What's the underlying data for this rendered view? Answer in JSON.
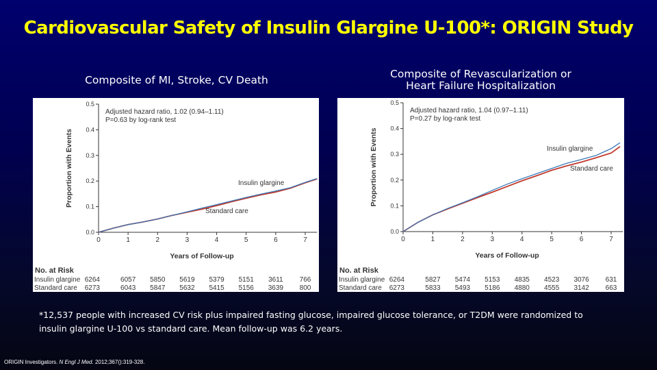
{
  "slide": {
    "title": "Cardiovascular Safety of Insulin Glargine U-100*: ORIGIN Study",
    "footnote_line1": "*12,537 people with increased CV risk plus impaired fasting glucose, impaired glucose tolerance, or T2DM were randomized to",
    "footnote_line2": "insulin glargine U-100 vs standard care. Mean follow-up was 6.2 years.",
    "citation_authors": "ORIGIN Investigators. ",
    "citation_journal": "N Engl J Med",
    "citation_rest": ". 2012;367():319-328."
  },
  "colors": {
    "title": "#ffff00",
    "glargine": "#3a78b8",
    "standard": "#c0392b"
  },
  "chart_data": [
    {
      "type": "line",
      "title": "Composite of MI, Stroke, CV Death",
      "xlabel": "Years of Follow-up",
      "ylabel": "Proportion with Events",
      "xlim": [
        0,
        7.4
      ],
      "ylim": [
        0,
        0.5
      ],
      "xticks": [
        "0",
        "1",
        "2",
        "3",
        "4",
        "5",
        "6",
        "7"
      ],
      "yticks": [
        "0.0",
        "0.1",
        "0.2",
        "0.3",
        "0.4",
        "0.5"
      ],
      "annotation1": "Adjusted hazard ratio, 1.02 (0.94–1.11)",
      "annotation2": "P=0.63 by log-rank test",
      "series": [
        {
          "name": "Insulin glargine",
          "x": [
            0,
            0.5,
            1,
            1.5,
            2,
            2.5,
            3,
            3.5,
            4,
            4.5,
            5,
            5.5,
            6,
            6.5,
            7,
            7.4
          ],
          "values": [
            0,
            0.016,
            0.03,
            0.04,
            0.052,
            0.066,
            0.08,
            0.094,
            0.108,
            0.122,
            0.136,
            0.149,
            0.161,
            0.174,
            0.195,
            0.21
          ]
        },
        {
          "name": "Standard care",
          "x": [
            0,
            0.5,
            1,
            1.5,
            2,
            2.5,
            3,
            3.5,
            4,
            4.5,
            5,
            5.5,
            6,
            6.5,
            7,
            7.4
          ],
          "values": [
            0,
            0.016,
            0.03,
            0.04,
            0.052,
            0.066,
            0.078,
            0.09,
            0.104,
            0.119,
            0.133,
            0.146,
            0.157,
            0.172,
            0.193,
            0.208
          ]
        }
      ],
      "risk_header": "No. at Risk",
      "risk": [
        {
          "label": "Insulin glargine",
          "values": [
            "6264",
            "6057",
            "5850",
            "5619",
            "5379",
            "5151",
            "3611",
            "766"
          ]
        },
        {
          "label": "Standard care",
          "values": [
            "6273",
            "6043",
            "5847",
            "5632",
            "5415",
            "5156",
            "3639",
            "800"
          ]
        }
      ]
    },
    {
      "type": "line",
      "title": "Composite of Revascularization or Heart Failure Hospitalization",
      "xlabel": "Years of Follow-up",
      "ylabel": "Proportion with Events",
      "xlim": [
        0,
        7.4
      ],
      "ylim": [
        0,
        0.5
      ],
      "xticks": [
        "0",
        "1",
        "2",
        "3",
        "4",
        "5",
        "6",
        "7"
      ],
      "yticks": [
        "0.0",
        "0.1",
        "0.2",
        "0.3",
        "0.4",
        "0.5"
      ],
      "annotation1": "Adjusted hazard ratio, 1.04 (0.97–1.11)",
      "annotation2": "P=0.27 by log-rank test",
      "series": [
        {
          "name": "Insulin glargine",
          "x": [
            0,
            0.5,
            1,
            1.5,
            2,
            2.5,
            3,
            3.5,
            4,
            4.5,
            5,
            5.5,
            6,
            6.5,
            7,
            7.3
          ],
          "values": [
            0,
            0.036,
            0.065,
            0.09,
            0.112,
            0.135,
            0.16,
            0.184,
            0.205,
            0.225,
            0.245,
            0.265,
            0.28,
            0.296,
            0.322,
            0.345
          ]
        },
        {
          "name": "Standard care",
          "x": [
            0,
            0.5,
            1,
            1.5,
            2,
            2.5,
            3,
            3.5,
            4,
            4.5,
            5,
            5.5,
            6,
            6.5,
            7,
            7.3
          ],
          "values": [
            0,
            0.036,
            0.065,
            0.088,
            0.11,
            0.132,
            0.153,
            0.175,
            0.197,
            0.217,
            0.238,
            0.255,
            0.27,
            0.287,
            0.305,
            0.33
          ]
        }
      ],
      "risk_header": "No. at Risk",
      "risk": [
        {
          "label": "Insulin glargine",
          "values": [
            "6264",
            "5827",
            "5474",
            "5153",
            "4835",
            "4523",
            "3076",
            "631"
          ]
        },
        {
          "label": "Standard care",
          "values": [
            "6273",
            "5833",
            "5493",
            "5186",
            "4880",
            "4555",
            "3142",
            "663"
          ]
        }
      ]
    }
  ]
}
